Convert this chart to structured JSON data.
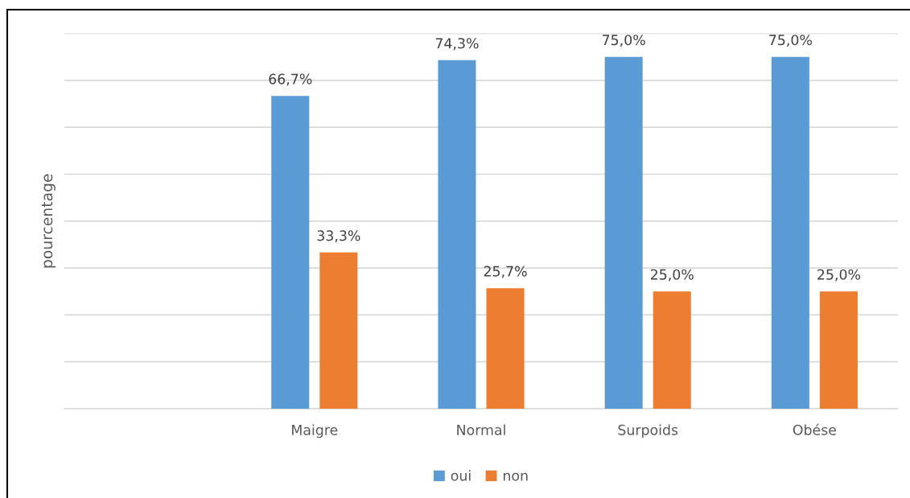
{
  "chart_data": {
    "type": "bar",
    "ylabel": "pourcentage",
    "categories": [
      null,
      "Maigre",
      "Normal",
      "Surpoids",
      "Obése"
    ],
    "series": [
      {
        "name": "oui",
        "color": "#5b9bd5",
        "values": [
          null,
          66.7,
          74.3,
          75.0,
          75.0
        ],
        "value_labels": [
          null,
          "66,7%",
          "74,3%",
          "75,0%",
          "75,0%"
        ]
      },
      {
        "name": "non",
        "color": "#ed7d31",
        "values": [
          null,
          33.3,
          25.7,
          25.0,
          25.0
        ],
        "value_labels": [
          null,
          "33,3%",
          "25,7%",
          "25,0%",
          "25,0%"
        ]
      }
    ],
    "ylim": [
      0,
      80
    ],
    "yticks": [
      {
        "value": 0,
        "label": null
      },
      {
        "value": 10,
        "label": null
      },
      {
        "value": 20,
        "label": null
      },
      {
        "value": 30,
        "label": null
      },
      {
        "value": 40,
        "label": null
      },
      {
        "value": 50,
        "label": null
      },
      {
        "value": 60,
        "label": null
      },
      {
        "value": 70,
        "label": null
      },
      {
        "value": 80,
        "label": null
      }
    ],
    "tick_labels": "x",
    "grid": "y",
    "legend": "bottom"
  }
}
